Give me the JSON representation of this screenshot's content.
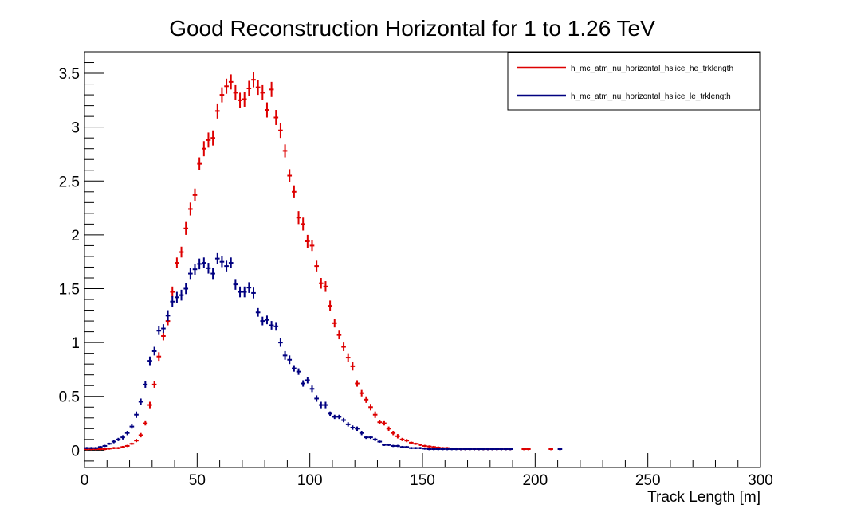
{
  "chart_data": {
    "type": "scatter",
    "title": "Good Reconstruction Horizontal for 1 to 1.26 TeV",
    "xlabel": "Track Length [m]",
    "ylabel": "",
    "xlim": [
      0,
      300
    ],
    "ylim": [
      -0.16,
      3.7
    ],
    "xticks": [
      0,
      50,
      100,
      150,
      200,
      250,
      300
    ],
    "xtick_labels": [
      "0",
      "50",
      "100",
      "150",
      "200",
      "250",
      "300"
    ],
    "yticks": [
      0,
      0.5,
      1,
      1.5,
      2,
      2.5,
      3,
      3.5
    ],
    "ytick_labels": [
      "0",
      "0.5",
      "1",
      "1.5",
      "2",
      "2.5",
      "3",
      "3.5"
    ],
    "grid": false,
    "legend_position": "top-right",
    "bin_width": 2,
    "series": [
      {
        "name": "h_mc_atm_nu_horizontal_hslice_he_trklength",
        "color": "#dd0000",
        "points": [
          [
            1,
            0.01,
            0.01
          ],
          [
            3,
            0.01,
            0.01
          ],
          [
            5,
            0.01,
            0.01
          ],
          [
            7,
            0.01,
            0.01
          ],
          [
            9,
            0.01,
            0.01
          ],
          [
            11,
            0.015,
            0.01
          ],
          [
            13,
            0.02,
            0.01
          ],
          [
            15,
            0.02,
            0.01
          ],
          [
            17,
            0.03,
            0.01
          ],
          [
            19,
            0.04,
            0.01
          ],
          [
            21,
            0.06,
            0.01
          ],
          [
            23,
            0.09,
            0.015
          ],
          [
            25,
            0.14,
            0.02
          ],
          [
            27,
            0.25,
            0.02
          ],
          [
            29,
            0.42,
            0.03
          ],
          [
            31,
            0.61,
            0.03
          ],
          [
            33,
            0.87,
            0.04
          ],
          [
            35,
            1.06,
            0.04
          ],
          [
            37,
            1.2,
            0.04
          ],
          [
            39,
            1.47,
            0.05
          ],
          [
            41,
            1.74,
            0.05
          ],
          [
            43,
            1.84,
            0.05
          ],
          [
            45,
            2.06,
            0.06
          ],
          [
            47,
            2.24,
            0.06
          ],
          [
            49,
            2.37,
            0.06
          ],
          [
            51,
            2.66,
            0.06
          ],
          [
            53,
            2.8,
            0.07
          ],
          [
            55,
            2.88,
            0.07
          ],
          [
            57,
            2.9,
            0.07
          ],
          [
            59,
            3.15,
            0.07
          ],
          [
            61,
            3.3,
            0.07
          ],
          [
            63,
            3.38,
            0.07
          ],
          [
            65,
            3.42,
            0.07
          ],
          [
            67,
            3.32,
            0.07
          ],
          [
            69,
            3.25,
            0.07
          ],
          [
            71,
            3.26,
            0.07
          ],
          [
            73,
            3.36,
            0.07
          ],
          [
            75,
            3.44,
            0.07
          ],
          [
            77,
            3.37,
            0.07
          ],
          [
            79,
            3.32,
            0.07
          ],
          [
            81,
            3.16,
            0.07
          ],
          [
            83,
            3.35,
            0.07
          ],
          [
            85,
            3.09,
            0.07
          ],
          [
            87,
            2.97,
            0.07
          ],
          [
            89,
            2.78,
            0.06
          ],
          [
            91,
            2.55,
            0.06
          ],
          [
            93,
            2.4,
            0.06
          ],
          [
            95,
            2.16,
            0.06
          ],
          [
            97,
            2.1,
            0.06
          ],
          [
            99,
            1.94,
            0.06
          ],
          [
            101,
            1.9,
            0.05
          ],
          [
            103,
            1.71,
            0.05
          ],
          [
            105,
            1.55,
            0.05
          ],
          [
            107,
            1.52,
            0.05
          ],
          [
            109,
            1.34,
            0.05
          ],
          [
            111,
            1.18,
            0.04
          ],
          [
            113,
            1.07,
            0.04
          ],
          [
            115,
            0.96,
            0.04
          ],
          [
            117,
            0.86,
            0.04
          ],
          [
            119,
            0.78,
            0.04
          ],
          [
            121,
            0.62,
            0.03
          ],
          [
            123,
            0.53,
            0.03
          ],
          [
            125,
            0.47,
            0.03
          ],
          [
            127,
            0.4,
            0.03
          ],
          [
            129,
            0.33,
            0.03
          ],
          [
            131,
            0.26,
            0.02
          ],
          [
            133,
            0.25,
            0.02
          ],
          [
            135,
            0.2,
            0.02
          ],
          [
            137,
            0.16,
            0.02
          ],
          [
            139,
            0.13,
            0.02
          ],
          [
            141,
            0.1,
            0.015
          ],
          [
            143,
            0.09,
            0.015
          ],
          [
            145,
            0.07,
            0.01
          ],
          [
            147,
            0.06,
            0.01
          ],
          [
            149,
            0.05,
            0.01
          ],
          [
            151,
            0.04,
            0.01
          ],
          [
            153,
            0.035,
            0.01
          ],
          [
            155,
            0.03,
            0.01
          ],
          [
            157,
            0.025,
            0.01
          ],
          [
            159,
            0.02,
            0.01
          ],
          [
            161,
            0.02,
            0.01
          ],
          [
            163,
            0.015,
            0.01
          ],
          [
            165,
            0.015,
            0.01
          ],
          [
            167,
            0.01,
            0.01
          ],
          [
            169,
            0.01,
            0.01
          ],
          [
            171,
            0.01,
            0.01
          ],
          [
            173,
            0.01,
            0.01
          ],
          [
            175,
            0.01,
            0.01
          ],
          [
            177,
            0.01,
            0.01
          ],
          [
            179,
            0.01,
            0.01
          ],
          [
            181,
            0.01,
            0.01
          ],
          [
            183,
            0.01,
            0.01
          ],
          [
            185,
            0.01,
            0.01
          ],
          [
            187,
            0.01,
            0.01
          ],
          [
            189,
            0.01,
            0.01
          ],
          [
            195,
            0.01,
            0.01
          ],
          [
            197,
            0.01,
            0.01
          ],
          [
            207,
            0.01,
            0.01
          ]
        ]
      },
      {
        "name": "h_mc_atm_nu_horizontal_hslice_le_trklength",
        "color": "#000080",
        "points": [
          [
            1,
            0.02,
            0.01
          ],
          [
            3,
            0.02,
            0.01
          ],
          [
            5,
            0.02,
            0.01
          ],
          [
            7,
            0.03,
            0.01
          ],
          [
            9,
            0.04,
            0.01
          ],
          [
            11,
            0.06,
            0.01
          ],
          [
            13,
            0.08,
            0.015
          ],
          [
            15,
            0.1,
            0.015
          ],
          [
            17,
            0.12,
            0.02
          ],
          [
            19,
            0.16,
            0.02
          ],
          [
            21,
            0.22,
            0.02
          ],
          [
            23,
            0.33,
            0.03
          ],
          [
            25,
            0.45,
            0.03
          ],
          [
            27,
            0.61,
            0.03
          ],
          [
            29,
            0.83,
            0.04
          ],
          [
            31,
            0.92,
            0.04
          ],
          [
            33,
            1.11,
            0.04
          ],
          [
            35,
            1.13,
            0.04
          ],
          [
            37,
            1.25,
            0.05
          ],
          [
            39,
            1.38,
            0.05
          ],
          [
            41,
            1.42,
            0.05
          ],
          [
            43,
            1.44,
            0.05
          ],
          [
            45,
            1.5,
            0.05
          ],
          [
            47,
            1.64,
            0.05
          ],
          [
            49,
            1.68,
            0.05
          ],
          [
            51,
            1.73,
            0.05
          ],
          [
            53,
            1.74,
            0.05
          ],
          [
            55,
            1.69,
            0.05
          ],
          [
            57,
            1.64,
            0.05
          ],
          [
            59,
            1.78,
            0.05
          ],
          [
            61,
            1.75,
            0.05
          ],
          [
            63,
            1.71,
            0.05
          ],
          [
            65,
            1.74,
            0.05
          ],
          [
            67,
            1.54,
            0.05
          ],
          [
            69,
            1.47,
            0.05
          ],
          [
            71,
            1.47,
            0.05
          ],
          [
            73,
            1.51,
            0.05
          ],
          [
            75,
            1.46,
            0.05
          ],
          [
            77,
            1.28,
            0.04
          ],
          [
            79,
            1.2,
            0.04
          ],
          [
            81,
            1.21,
            0.04
          ],
          [
            83,
            1.16,
            0.04
          ],
          [
            85,
            1.15,
            0.04
          ],
          [
            87,
            1.0,
            0.04
          ],
          [
            89,
            0.88,
            0.04
          ],
          [
            91,
            0.84,
            0.04
          ],
          [
            93,
            0.76,
            0.03
          ],
          [
            95,
            0.73,
            0.03
          ],
          [
            97,
            0.62,
            0.03
          ],
          [
            99,
            0.65,
            0.03
          ],
          [
            101,
            0.57,
            0.03
          ],
          [
            103,
            0.48,
            0.03
          ],
          [
            105,
            0.42,
            0.03
          ],
          [
            107,
            0.42,
            0.03
          ],
          [
            109,
            0.34,
            0.02
          ],
          [
            111,
            0.31,
            0.02
          ],
          [
            113,
            0.31,
            0.02
          ],
          [
            115,
            0.28,
            0.02
          ],
          [
            117,
            0.24,
            0.02
          ],
          [
            119,
            0.21,
            0.02
          ],
          [
            121,
            0.2,
            0.02
          ],
          [
            123,
            0.16,
            0.02
          ],
          [
            125,
            0.12,
            0.015
          ],
          [
            127,
            0.12,
            0.015
          ],
          [
            129,
            0.1,
            0.015
          ],
          [
            131,
            0.08,
            0.01
          ],
          [
            133,
            0.05,
            0.01
          ],
          [
            135,
            0.05,
            0.01
          ],
          [
            137,
            0.04,
            0.01
          ],
          [
            139,
            0.04,
            0.01
          ],
          [
            141,
            0.03,
            0.01
          ],
          [
            143,
            0.03,
            0.01
          ],
          [
            145,
            0.02,
            0.01
          ],
          [
            147,
            0.02,
            0.01
          ],
          [
            149,
            0.02,
            0.01
          ],
          [
            151,
            0.015,
            0.01
          ],
          [
            153,
            0.01,
            0.01
          ],
          [
            155,
            0.01,
            0.01
          ],
          [
            157,
            0.01,
            0.01
          ],
          [
            159,
            0.01,
            0.01
          ],
          [
            161,
            0.01,
            0.01
          ],
          [
            163,
            0.01,
            0.01
          ],
          [
            165,
            0.01,
            0.01
          ],
          [
            167,
            0.01,
            0.01
          ],
          [
            169,
            0.01,
            0.01
          ],
          [
            171,
            0.01,
            0.01
          ],
          [
            173,
            0.01,
            0.01
          ],
          [
            175,
            0.01,
            0.01
          ],
          [
            177,
            0.01,
            0.01
          ],
          [
            179,
            0.01,
            0.01
          ],
          [
            181,
            0.01,
            0.01
          ],
          [
            183,
            0.01,
            0.01
          ],
          [
            185,
            0.01,
            0.01
          ],
          [
            187,
            0.01,
            0.01
          ],
          [
            189,
            0.01,
            0.01
          ],
          [
            211,
            0.01,
            0.01
          ]
        ]
      }
    ]
  }
}
